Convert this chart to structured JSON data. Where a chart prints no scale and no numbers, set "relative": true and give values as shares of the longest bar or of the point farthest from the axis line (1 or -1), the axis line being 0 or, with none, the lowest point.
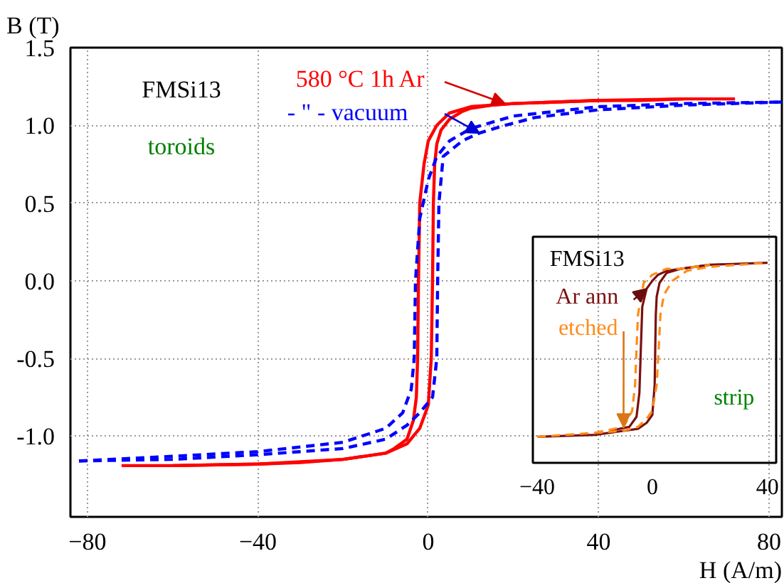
{
  "chart_data": [
    {
      "type": "line",
      "xlabel": "H (A/m)",
      "ylabel": "B (T)",
      "xlim": [
        -84,
        83
      ],
      "ylim": [
        -1.52,
        1.5
      ],
      "xticks": [
        -80,
        -40,
        0,
        40,
        80
      ],
      "yticks": [
        {
          "value": 1.5,
          "label": "1.5"
        },
        {
          "value": 1.0,
          "label": "1.0"
        },
        {
          "value": 0.5,
          "label": "0.5"
        },
        {
          "value": 0.0,
          "label": "0.0"
        },
        {
          "value": -0.5,
          "label": "-0.5"
        },
        {
          "value": -1.0,
          "label": "-1.0"
        }
      ],
      "grid": true,
      "marker": "none",
      "series": [
        {
          "color": "#ff0000",
          "line_style": "solid",
          "x": [
            -72,
            -60,
            -40,
            -30,
            -20,
            -10,
            -5,
            -2,
            0,
            0.7,
            1,
            1.2,
            1.5,
            2,
            3,
            5,
            8,
            10,
            15,
            20,
            30,
            40,
            50,
            60,
            72
          ],
          "values": [
            -1.19,
            -1.19,
            -1.18,
            -1.17,
            -1.15,
            -1.11,
            -1.05,
            -0.95,
            -0.8,
            -0.5,
            0,
            0.5,
            0.75,
            0.88,
            0.97,
            1.04,
            1.09,
            1.11,
            1.13,
            1.14,
            1.15,
            1.16,
            1.16,
            1.17,
            1.17
          ]
        },
        {
          "color": "#ff0000",
          "line_style": "solid",
          "x": [
            -60,
            -40,
            -20,
            -10,
            -8,
            -5,
            -3.5,
            -2.8,
            -2.5,
            -2.3,
            -2,
            -1,
            0,
            2,
            5,
            10,
            20,
            40,
            60
          ],
          "values": [
            -1.19,
            -1.18,
            -1.15,
            -1.11,
            -1.08,
            -1.02,
            -0.9,
            -0.75,
            -0.5,
            0,
            0.5,
            0.75,
            0.9,
            1.0,
            1.08,
            1.12,
            1.14,
            1.16,
            1.17
          ]
        },
        {
          "color": "#0000ff",
          "line_style": "dashed",
          "x": [
            -82,
            -60,
            -40,
            -20,
            -10,
            -5,
            -2,
            1,
            2,
            2.2,
            2.5,
            3.5,
            8,
            12,
            18,
            25,
            40,
            60,
            83
          ],
          "values": [
            -1.16,
            -1.15,
            -1.12,
            -1.08,
            -1.02,
            -0.93,
            -0.85,
            -0.75,
            -0.5,
            0,
            0.5,
            0.8,
            0.9,
            0.95,
            1.0,
            1.05,
            1.1,
            1.13,
            1.15
          ]
        },
        {
          "color": "#0000ff",
          "line_style": "dashed",
          "x": [
            -82,
            -60,
            -40,
            -20,
            -10,
            -6,
            -4,
            -3.3,
            -3,
            -2,
            0,
            2,
            5,
            10,
            20,
            40,
            60,
            83
          ],
          "values": [
            -1.16,
            -1.13,
            -1.1,
            -1.04,
            -0.95,
            -0.85,
            -0.7,
            -0.5,
            0,
            0.4,
            0.65,
            0.8,
            0.9,
            0.98,
            1.06,
            1.12,
            1.14,
            1.15
          ]
        }
      ],
      "annotations": [
        {
          "text": "580 °C 1h Ar",
          "x": 18,
          "y": 1.14
        },
        {
          "text": "- \" -   vacuum",
          "x": 12,
          "y": 0.95
        },
        "FMSi13",
        "toroids"
      ]
    },
    {
      "type": "line",
      "relative": true,
      "xlim": [
        -41.5,
        43
      ],
      "xticks": [
        -40,
        0,
        40
      ],
      "tick_labels": "x",
      "marker": "none",
      "series": [
        {
          "color": "#7b1010",
          "line_style": "solid",
          "x": [
            -40,
            -20,
            -10,
            -5,
            -2,
            0,
            0.8,
            1.0,
            1.2,
            1.5,
            2.5,
            5,
            10,
            20,
            40
          ],
          "values": [
            0.13,
            0.14,
            0.16,
            0.17,
            0.2,
            0.24,
            0.39,
            0.57,
            0.74,
            0.83,
            0.9,
            0.95,
            0.97,
            0.99,
            1.0
          ]
        },
        {
          "color": "#7b1010",
          "line_style": "solid",
          "x": [
            -15,
            -8,
            -5.5,
            -4.5,
            -4,
            -3.5,
            -2,
            0,
            2,
            5,
            10,
            20
          ],
          "values": [
            0.16,
            0.18,
            0.23,
            0.35,
            0.57,
            0.78,
            0.87,
            0.91,
            0.94,
            0.96,
            0.97,
            0.99
          ]
        },
        {
          "color": "#ff8c1a",
          "line_style": "dashed",
          "x": [
            -40,
            -20,
            -10,
            -5,
            -2,
            0,
            1.5,
            2.2,
            2.8,
            4,
            7,
            12,
            20,
            40
          ],
          "values": [
            0.13,
            0.15,
            0.16,
            0.18,
            0.22,
            0.26,
            0.39,
            0.57,
            0.74,
            0.84,
            0.91,
            0.96,
            0.98,
            1.0
          ]
        },
        {
          "color": "#ff8c1a",
          "line_style": "dashed",
          "x": [
            -20,
            -10,
            -7,
            -6,
            -5.5,
            -5,
            -3,
            0,
            5,
            10,
            20
          ],
          "values": [
            0.15,
            0.18,
            0.26,
            0.39,
            0.57,
            0.74,
            0.9,
            0.94,
            0.97,
            0.97,
            0.99
          ]
        }
      ],
      "annotations": [
        {
          "text": "Ar ann",
          "x": -2,
          "y": 0.87
        },
        {
          "text": "etched",
          "x": -10,
          "y": 0.18
        },
        "FMSi13",
        "strip"
      ]
    }
  ]
}
